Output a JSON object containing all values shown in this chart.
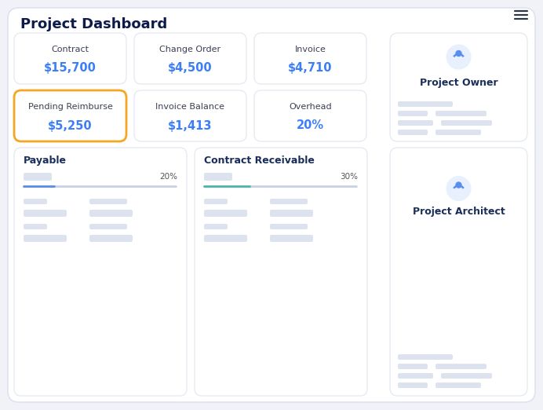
{
  "title": "Project Dashboard",
  "outer_bg": "#f0f2f8",
  "card_bg": "#ffffff",
  "card_border": "#e4e8f0",
  "title_color": "#0d1b4b",
  "label_color": "#3a3f52",
  "value_color": "#3b7ef8",
  "highlight_border": "#f5a623",
  "placeholder_color": "#dde3ee",
  "placeholder_light": "#e8ecf5",
  "icon_color": "#5b8dee",
  "icon_bg": "#e8f0fe",
  "bar_active": "#5b8dee",
  "bar_teal": "#4db6ac",
  "bar_bg": "#c8d0e4",
  "text_dark": "#1a2e5a",
  "metrics": [
    {
      "label": "Contract",
      "value": "$15,700",
      "row": 0,
      "col": 0,
      "highlight": false
    },
    {
      "label": "Change Order",
      "value": "$4,500",
      "row": 0,
      "col": 1,
      "highlight": false
    },
    {
      "label": "Invoice",
      "value": "$4,710",
      "row": 0,
      "col": 2,
      "highlight": false
    },
    {
      "label": "Pending Reimburse",
      "value": "$5,250",
      "row": 1,
      "col": 0,
      "highlight": true
    },
    {
      "label": "Invoice Balance",
      "value": "$1,413",
      "row": 1,
      "col": 1,
      "highlight": false
    },
    {
      "label": "Overhead",
      "value": "20%",
      "row": 1,
      "col": 2,
      "highlight": false
    }
  ],
  "payable_pct": "20%",
  "receivable_pct": "30%",
  "owner_label": "Project Owner",
  "architect_label": "Project Architect"
}
